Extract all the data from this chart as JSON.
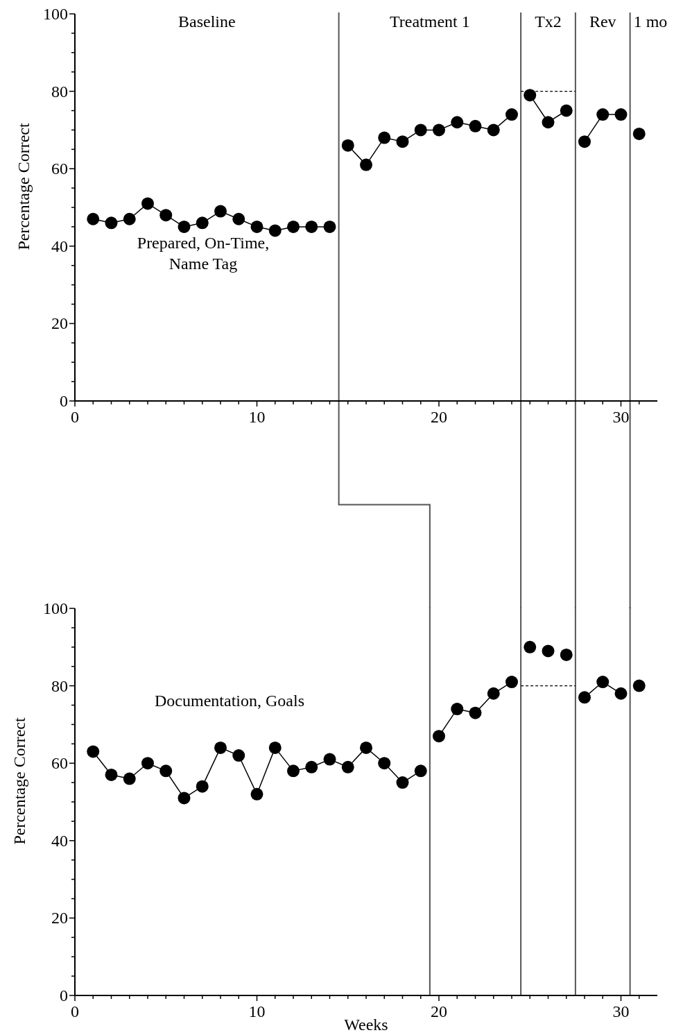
{
  "chart_data": [
    {
      "type": "line",
      "ylabel": "Percentage Correct",
      "xlim": [
        0,
        32
      ],
      "ylim": [
        0,
        100
      ],
      "marker": "circle",
      "xticks": [
        0,
        {
          "value": 1,
          "label": null
        },
        {
          "value": 2,
          "label": null
        },
        {
          "value": 3,
          "label": null
        },
        {
          "value": 4,
          "label": null
        },
        {
          "value": 5,
          "label": null
        },
        {
          "value": 6,
          "label": null
        },
        {
          "value": 7,
          "label": null
        },
        {
          "value": 8,
          "label": null
        },
        {
          "value": 9,
          "label": null
        },
        10,
        {
          "value": 11,
          "label": null
        },
        {
          "value": 12,
          "label": null
        },
        {
          "value": 13,
          "label": null
        },
        {
          "value": 14,
          "label": null
        },
        {
          "value": 15,
          "label": null
        },
        {
          "value": 16,
          "label": null
        },
        {
          "value": 17,
          "label": null
        },
        {
          "value": 18,
          "label": null
        },
        {
          "value": 19,
          "label": null
        },
        20,
        {
          "value": 21,
          "label": null
        },
        {
          "value": 22,
          "label": null
        },
        {
          "value": 23,
          "label": null
        },
        {
          "value": 24,
          "label": null
        },
        {
          "value": 25,
          "label": null
        },
        {
          "value": 26,
          "label": null
        },
        {
          "value": 27,
          "label": null
        },
        {
          "value": 28,
          "label": null
        },
        {
          "value": 29,
          "label": null
        },
        30,
        {
          "value": 31,
          "label": null
        }
      ],
      "yticks": [
        0,
        {
          "value": 5,
          "label": null
        },
        {
          "value": 10,
          "label": null
        },
        {
          "value": 15,
          "label": null
        },
        20,
        {
          "value": 25,
          "label": null
        },
        {
          "value": 30,
          "label": null
        },
        {
          "value": 35,
          "label": null
        },
        40,
        {
          "value": 45,
          "label": null
        },
        {
          "value": 50,
          "label": null
        },
        {
          "value": 55,
          "label": null
        },
        60,
        {
          "value": 65,
          "label": null
        },
        {
          "value": 70,
          "label": null
        },
        {
          "value": 75,
          "label": null
        },
        80,
        {
          "value": 85,
          "label": null
        },
        {
          "value": 90,
          "label": null
        },
        {
          "value": 95,
          "label": null
        },
        100
      ],
      "series": [
        {
          "color": "#000000",
          "x": [
            1,
            2,
            3,
            4,
            5,
            6,
            7,
            8,
            9,
            10,
            11,
            12,
            13,
            14
          ],
          "values": [
            47,
            46,
            47,
            51,
            48,
            45,
            46,
            49,
            47,
            45,
            44,
            45,
            45,
            45
          ]
        },
        {
          "color": "#000000",
          "x": [
            15,
            16,
            17,
            18,
            19,
            20,
            21,
            22,
            23,
            24
          ],
          "values": [
            66,
            61,
            68,
            67,
            70,
            70,
            72,
            71,
            70,
            74
          ]
        },
        {
          "color": "#000000",
          "x": [
            25,
            26,
            27
          ],
          "values": [
            79,
            72,
            75
          ]
        },
        {
          "color": "#000000",
          "x": [
            28,
            29,
            30
          ],
          "values": [
            67,
            74,
            74
          ]
        },
        {
          "color": "#000000",
          "x": [
            31
          ],
          "values": [
            69
          ]
        },
        {
          "color": "#000000",
          "x": [
            24.5,
            27.5
          ],
          "values": [
            80,
            80
          ],
          "marker": "none",
          "line_style": "dashed"
        }
      ],
      "ref_lines": [
        {
          "axis": "x",
          "value": 14.5,
          "color": "#555555"
        },
        {
          "axis": "x",
          "value": 24.5,
          "color": "#555555"
        },
        {
          "axis": "x",
          "value": 27.5,
          "color": "#555555"
        },
        {
          "axis": "x",
          "value": 30.5,
          "color": "#555555"
        }
      ],
      "annotations": [
        "Baseline",
        "Treatment 1",
        "Tx2",
        "Rev",
        "1 mo",
        "Prepared, On-Time, Name Tag"
      ]
    },
    {
      "type": "line",
      "ylabel": "Percentage Correct",
      "xlabel": "Weeks",
      "xlim": [
        0,
        32
      ],
      "ylim": [
        0,
        100
      ],
      "marker": "circle",
      "xticks": [
        0,
        {
          "value": 1,
          "label": null
        },
        {
          "value": 2,
          "label": null
        },
        {
          "value": 3,
          "label": null
        },
        {
          "value": 4,
          "label": null
        },
        {
          "value": 5,
          "label": null
        },
        {
          "value": 6,
          "label": null
        },
        {
          "value": 7,
          "label": null
        },
        {
          "value": 8,
          "label": null
        },
        {
          "value": 9,
          "label": null
        },
        10,
        {
          "value": 11,
          "label": null
        },
        {
          "value": 12,
          "label": null
        },
        {
          "value": 13,
          "label": null
        },
        {
          "value": 14,
          "label": null
        },
        {
          "value": 15,
          "label": null
        },
        {
          "value": 16,
          "label": null
        },
        {
          "value": 17,
          "label": null
        },
        {
          "value": 18,
          "label": null
        },
        {
          "value": 19,
          "label": null
        },
        20,
        {
          "value": 21,
          "label": null
        },
        {
          "value": 22,
          "label": null
        },
        {
          "value": 23,
          "label": null
        },
        {
          "value": 24,
          "label": null
        },
        {
          "value": 25,
          "label": null
        },
        {
          "value": 26,
          "label": null
        },
        {
          "value": 27,
          "label": null
        },
        {
          "value": 28,
          "label": null
        },
        {
          "value": 29,
          "label": null
        },
        30,
        {
          "value": 31,
          "label": null
        }
      ],
      "yticks": [
        0,
        {
          "value": 5,
          "label": null
        },
        {
          "value": 10,
          "label": null
        },
        {
          "value": 15,
          "label": null
        },
        20,
        {
          "value": 25,
          "label": null
        },
        {
          "value": 30,
          "label": null
        },
        {
          "value": 35,
          "label": null
        },
        40,
        {
          "value": 45,
          "label": null
        },
        {
          "value": 50,
          "label": null
        },
        {
          "value": 55,
          "label": null
        },
        60,
        {
          "value": 65,
          "label": null
        },
        {
          "value": 70,
          "label": null
        },
        {
          "value": 75,
          "label": null
        },
        80,
        {
          "value": 85,
          "label": null
        },
        {
          "value": 90,
          "label": null
        },
        {
          "value": 95,
          "label": null
        },
        100
      ],
      "series": [
        {
          "color": "#000000",
          "x": [
            1,
            2,
            3,
            4,
            5,
            6,
            7,
            8,
            9,
            10,
            11,
            12,
            13,
            14,
            15,
            16,
            17,
            18,
            19
          ],
          "values": [
            63,
            57,
            56,
            60,
            58,
            51,
            54,
            64,
            62,
            52,
            64,
            58,
            59,
            61,
            59,
            64,
            60,
            55,
            58
          ]
        },
        {
          "color": "#000000",
          "x": [
            20,
            21,
            22,
            23,
            24
          ],
          "values": [
            67,
            74,
            73,
            78,
            81
          ]
        },
        {
          "type": "scatter",
          "color": "#000000",
          "x": [
            25,
            26,
            27
          ],
          "values": [
            90,
            89,
            88
          ]
        },
        {
          "color": "#000000",
          "x": [
            28,
            29,
            30
          ],
          "values": [
            77,
            81,
            78
          ]
        },
        {
          "color": "#000000",
          "x": [
            31
          ],
          "values": [
            80
          ]
        },
        {
          "color": "#000000",
          "x": [
            24.5,
            27.5
          ],
          "values": [
            80,
            80
          ],
          "marker": "none",
          "line_style": "dashed"
        }
      ],
      "ref_lines": [
        {
          "axis": "x",
          "value": 19.5,
          "color": "#555555"
        },
        {
          "axis": "x",
          "value": 24.5,
          "color": "#555555"
        },
        {
          "axis": "x",
          "value": 27.5,
          "color": "#555555"
        },
        {
          "axis": "x",
          "value": 30.5,
          "color": "#555555"
        }
      ],
      "annotations": [
        "Documentation, Goals"
      ]
    }
  ]
}
